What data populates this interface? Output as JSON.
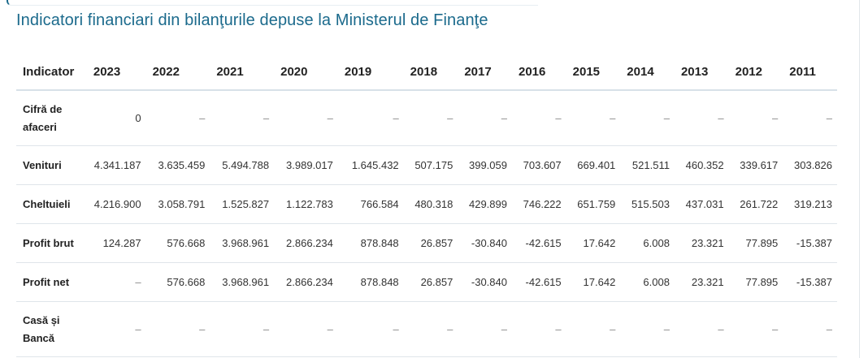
{
  "title": "Indicatori financiari din bilanţurile depuse la Ministerul de Finanţe",
  "table": {
    "header_label": "Indicator",
    "years": [
      "2023",
      "2022",
      "2021",
      "2020",
      "2019",
      "2018",
      "2017",
      "2016",
      "2015",
      "2014",
      "2013",
      "2012",
      "2011"
    ],
    "rows": [
      {
        "label": "Cifră de afaceri",
        "values": [
          "0",
          "–",
          "–",
          "–",
          "–",
          "–",
          "–",
          "–",
          "–",
          "–",
          "–",
          "–",
          "–"
        ]
      },
      {
        "label": "Venituri",
        "values": [
          "4.341.187",
          "3.635.459",
          "5.494.788",
          "3.989.017",
          "1.645.432",
          "507.175",
          "399.059",
          "703.607",
          "669.401",
          "521.511",
          "460.352",
          "339.617",
          "303.826"
        ]
      },
      {
        "label": "Cheltuieli",
        "values": [
          "4.216.900",
          "3.058.791",
          "1.525.827",
          "1.122.783",
          "766.584",
          "480.318",
          "429.899",
          "746.222",
          "651.759",
          "515.503",
          "437.031",
          "261.722",
          "319.213"
        ]
      },
      {
        "label": "Profit brut",
        "values": [
          "124.287",
          "576.668",
          "3.968.961",
          "2.866.234",
          "878.848",
          "26.857",
          "-30.840",
          "-42.615",
          "17.642",
          "6.008",
          "23.321",
          "77.895",
          "-15.387"
        ]
      },
      {
        "label": "Profit net",
        "values": [
          "–",
          "576.668",
          "3.968.961",
          "2.866.234",
          "878.848",
          "26.857",
          "-30.840",
          "-42.615",
          "17.642",
          "6.008",
          "23.321",
          "77.895",
          "-15.387"
        ]
      },
      {
        "label": "Casă și Bancă",
        "values": [
          "–",
          "–",
          "–",
          "–",
          "–",
          "–",
          "–",
          "–",
          "–",
          "–",
          "–",
          "–",
          "–"
        ]
      }
    ]
  }
}
